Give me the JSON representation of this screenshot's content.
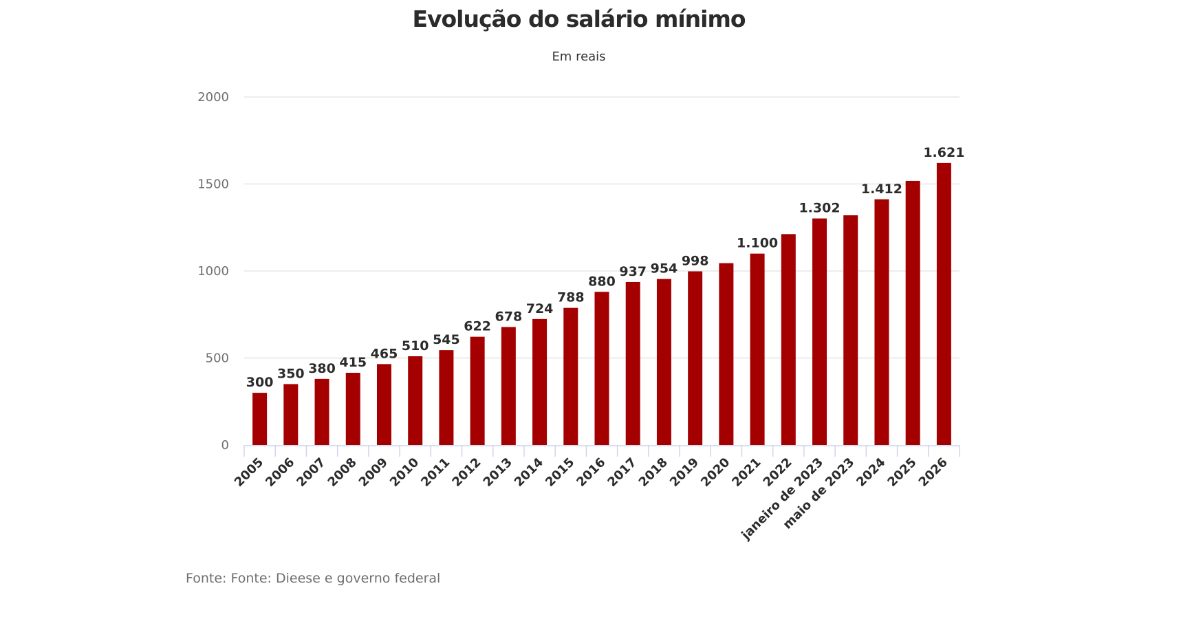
{
  "header": {
    "title": "Evolução do salário mínimo",
    "subtitle": "Em reais"
  },
  "footer": {
    "source": "Fonte: Fonte: Dieese e governo federal"
  },
  "colors": {
    "bar": "#a50000",
    "gridline": "#e6e6e6",
    "axis": "#ccd6eb"
  },
  "chart_data": {
    "type": "bar",
    "title": "Evolução do salário mínimo",
    "subtitle": "Em reais",
    "xlabel": "",
    "ylabel": "",
    "ylim": [
      0,
      2000
    ],
    "yticks": [
      0,
      500,
      1000,
      1500,
      2000
    ],
    "grid": true,
    "legend": "none",
    "categories": [
      "2005",
      "2006",
      "2007",
      "2008",
      "2009",
      "2010",
      "2011",
      "2012",
      "2013",
      "2014",
      "2015",
      "2016",
      "2017",
      "2018",
      "2019",
      "2020",
      "2021",
      "2022",
      "janeiro de 2023",
      "maio de 2023",
      "2024",
      "2025",
      "2026"
    ],
    "values": [
      300,
      350,
      380,
      415,
      465,
      510,
      545,
      622,
      678,
      724,
      788,
      880,
      937,
      954,
      998,
      1045,
      1100,
      1212,
      1302,
      1320,
      1412,
      1518,
      1621
    ],
    "data_labels": [
      "300",
      "350",
      "380",
      "415",
      "465",
      "510",
      "545",
      "622",
      "678",
      "724",
      "788",
      "880",
      "937",
      "954",
      "998",
      "",
      "1.100",
      "",
      "1.302",
      "",
      "1.412",
      "",
      "1.621"
    ],
    "source": "Fonte: Fonte: Dieese e governo federal"
  }
}
